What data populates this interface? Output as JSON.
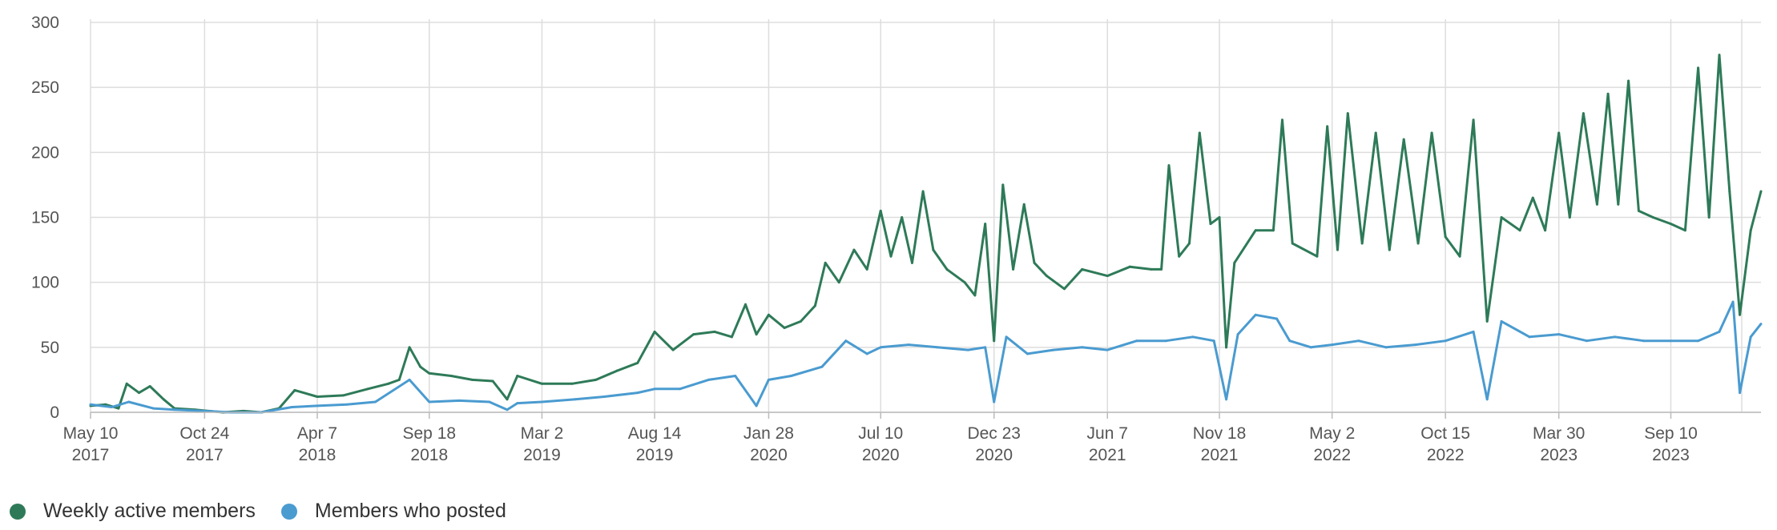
{
  "chart_data": {
    "type": "line",
    "title": "",
    "xlabel": "",
    "ylabel": "",
    "ylim": [
      0,
      300
    ],
    "yticks": [
      0,
      50,
      100,
      150,
      200,
      250,
      300
    ],
    "grid": true,
    "legend_position": "bottom-left",
    "x_range": [
      "2017-05-10",
      "2024-01-20"
    ],
    "x_ticks": [
      {
        "date": "2017-05-10",
        "line1": "May 10",
        "line2": "2017"
      },
      {
        "date": "2017-10-24",
        "line1": "Oct 24",
        "line2": "2017"
      },
      {
        "date": "2018-04-07",
        "line1": "Apr 7",
        "line2": "2018"
      },
      {
        "date": "2018-09-18",
        "line1": "Sep 18",
        "line2": "2018"
      },
      {
        "date": "2019-03-02",
        "line1": "Mar 2",
        "line2": "2019"
      },
      {
        "date": "2019-08-14",
        "line1": "Aug 14",
        "line2": "2019"
      },
      {
        "date": "2020-01-28",
        "line1": "Jan 28",
        "line2": "2020"
      },
      {
        "date": "2020-07-10",
        "line1": "Jul 10",
        "line2": "2020"
      },
      {
        "date": "2020-12-23",
        "line1": "Dec 23",
        "line2": "2020"
      },
      {
        "date": "2021-06-07",
        "line1": "Jun 7",
        "line2": "2021"
      },
      {
        "date": "2021-11-18",
        "line1": "Nov 18",
        "line2": "2021"
      },
      {
        "date": "2022-05-02",
        "line1": "May 2",
        "line2": "2022"
      },
      {
        "date": "2022-10-15",
        "line1": "Oct 15",
        "line2": "2022"
      },
      {
        "date": "2023-03-30",
        "line1": "Mar 30",
        "line2": "2023"
      },
      {
        "date": "2023-09-10",
        "line1": "Sep 10",
        "line2": "2023"
      }
    ],
    "series": [
      {
        "name": "Weekly active members",
        "color": "#2e7a58",
        "points": [
          [
            "2017-05-10",
            5
          ],
          [
            "2017-06-01",
            6
          ],
          [
            "2017-06-20",
            3
          ],
          [
            "2017-07-02",
            22
          ],
          [
            "2017-07-20",
            15
          ],
          [
            "2017-08-05",
            20
          ],
          [
            "2017-08-25",
            10
          ],
          [
            "2017-09-10",
            3
          ],
          [
            "2017-10-10",
            2
          ],
          [
            "2017-11-20",
            0
          ],
          [
            "2017-12-20",
            1
          ],
          [
            "2018-01-15",
            0
          ],
          [
            "2018-02-10",
            3
          ],
          [
            "2018-03-05",
            17
          ],
          [
            "2018-04-07",
            12
          ],
          [
            "2018-05-15",
            13
          ],
          [
            "2018-06-20",
            18
          ],
          [
            "2018-07-20",
            22
          ],
          [
            "2018-08-05",
            25
          ],
          [
            "2018-08-20",
            50
          ],
          [
            "2018-09-05",
            35
          ],
          [
            "2018-09-18",
            30
          ],
          [
            "2018-10-20",
            28
          ],
          [
            "2018-11-20",
            25
          ],
          [
            "2018-12-20",
            24
          ],
          [
            "2019-01-10",
            10
          ],
          [
            "2019-01-25",
            28
          ],
          [
            "2019-03-02",
            22
          ],
          [
            "2019-04-15",
            22
          ],
          [
            "2019-05-20",
            25
          ],
          [
            "2019-06-20",
            32
          ],
          [
            "2019-07-20",
            38
          ],
          [
            "2019-08-14",
            62
          ],
          [
            "2019-09-10",
            48
          ],
          [
            "2019-10-10",
            60
          ],
          [
            "2019-11-10",
            62
          ],
          [
            "2019-12-05",
            58
          ],
          [
            "2019-12-25",
            83
          ],
          [
            "2020-01-10",
            60
          ],
          [
            "2020-01-28",
            75
          ],
          [
            "2020-02-20",
            65
          ],
          [
            "2020-03-15",
            70
          ],
          [
            "2020-04-05",
            82
          ],
          [
            "2020-04-20",
            115
          ],
          [
            "2020-05-10",
            100
          ],
          [
            "2020-06-01",
            125
          ],
          [
            "2020-06-20",
            110
          ],
          [
            "2020-07-10",
            155
          ],
          [
            "2020-07-25",
            120
          ],
          [
            "2020-08-10",
            150
          ],
          [
            "2020-08-25",
            115
          ],
          [
            "2020-09-10",
            170
          ],
          [
            "2020-09-25",
            125
          ],
          [
            "2020-10-15",
            110
          ],
          [
            "2020-11-10",
            100
          ],
          [
            "2020-11-25",
            90
          ],
          [
            "2020-12-10",
            145
          ],
          [
            "2020-12-23",
            55
          ],
          [
            "2021-01-05",
            175
          ],
          [
            "2021-01-20",
            110
          ],
          [
            "2021-02-05",
            160
          ],
          [
            "2021-02-20",
            115
          ],
          [
            "2021-03-10",
            105
          ],
          [
            "2021-04-05",
            95
          ],
          [
            "2021-05-01",
            110
          ],
          [
            "2021-06-07",
            105
          ],
          [
            "2021-07-10",
            112
          ],
          [
            "2021-08-10",
            110
          ],
          [
            "2021-08-25",
            110
          ],
          [
            "2021-09-05",
            190
          ],
          [
            "2021-09-20",
            120
          ],
          [
            "2021-10-05",
            130
          ],
          [
            "2021-10-20",
            215
          ],
          [
            "2021-11-05",
            145
          ],
          [
            "2021-11-18",
            150
          ],
          [
            "2021-11-28",
            50
          ],
          [
            "2021-12-10",
            115
          ],
          [
            "2022-01-10",
            140
          ],
          [
            "2022-02-05",
            140
          ],
          [
            "2022-02-18",
            225
          ],
          [
            "2022-03-05",
            130
          ],
          [
            "2022-04-10",
            120
          ],
          [
            "2022-04-25",
            220
          ],
          [
            "2022-05-10",
            125
          ],
          [
            "2022-05-25",
            230
          ],
          [
            "2022-06-15",
            130
          ],
          [
            "2022-07-05",
            215
          ],
          [
            "2022-07-25",
            125
          ],
          [
            "2022-08-15",
            210
          ],
          [
            "2022-09-05",
            130
          ],
          [
            "2022-09-25",
            215
          ],
          [
            "2022-10-15",
            135
          ],
          [
            "2022-11-05",
            120
          ],
          [
            "2022-11-25",
            225
          ],
          [
            "2022-12-15",
            70
          ],
          [
            "2023-01-05",
            150
          ],
          [
            "2023-02-01",
            140
          ],
          [
            "2023-02-20",
            165
          ],
          [
            "2023-03-10",
            140
          ],
          [
            "2023-03-30",
            215
          ],
          [
            "2023-04-15",
            150
          ],
          [
            "2023-05-05",
            230
          ],
          [
            "2023-05-25",
            160
          ],
          [
            "2023-06-10",
            245
          ],
          [
            "2023-06-25",
            160
          ],
          [
            "2023-07-10",
            255
          ],
          [
            "2023-07-25",
            155
          ],
          [
            "2023-08-15",
            150
          ],
          [
            "2023-09-10",
            145
          ],
          [
            "2023-10-01",
            140
          ],
          [
            "2023-10-20",
            265
          ],
          [
            "2023-11-05",
            150
          ],
          [
            "2023-11-20",
            275
          ],
          [
            "2023-12-05",
            170
          ],
          [
            "2023-12-20",
            75
          ],
          [
            "2024-01-05",
            140
          ],
          [
            "2024-01-20",
            170
          ]
        ]
      },
      {
        "name": "Members who posted",
        "color": "#4a9bd0",
        "points": [
          [
            "2017-05-10",
            6
          ],
          [
            "2017-06-10",
            4
          ],
          [
            "2017-07-05",
            8
          ],
          [
            "2017-08-10",
            3
          ],
          [
            "2017-09-10",
            2
          ],
          [
            "2017-10-24",
            1
          ],
          [
            "2017-12-01",
            0
          ],
          [
            "2018-01-15",
            0
          ],
          [
            "2018-03-01",
            4
          ],
          [
            "2018-04-07",
            5
          ],
          [
            "2018-05-20",
            6
          ],
          [
            "2018-07-01",
            8
          ],
          [
            "2018-08-20",
            25
          ],
          [
            "2018-09-18",
            8
          ],
          [
            "2018-11-01",
            9
          ],
          [
            "2018-12-15",
            8
          ],
          [
            "2019-01-10",
            2
          ],
          [
            "2019-01-25",
            7
          ],
          [
            "2019-03-02",
            8
          ],
          [
            "2019-04-20",
            10
          ],
          [
            "2019-06-01",
            12
          ],
          [
            "2019-07-20",
            15
          ],
          [
            "2019-08-14",
            18
          ],
          [
            "2019-09-20",
            18
          ],
          [
            "2019-11-01",
            25
          ],
          [
            "2019-12-10",
            28
          ],
          [
            "2020-01-10",
            5
          ],
          [
            "2020-01-28",
            25
          ],
          [
            "2020-03-01",
            28
          ],
          [
            "2020-04-15",
            35
          ],
          [
            "2020-05-20",
            55
          ],
          [
            "2020-06-20",
            45
          ],
          [
            "2020-07-10",
            50
          ],
          [
            "2020-08-20",
            52
          ],
          [
            "2020-10-01",
            50
          ],
          [
            "2020-11-15",
            48
          ],
          [
            "2020-12-10",
            50
          ],
          [
            "2020-12-23",
            8
          ],
          [
            "2021-01-10",
            58
          ],
          [
            "2021-02-10",
            45
          ],
          [
            "2021-03-20",
            48
          ],
          [
            "2021-05-01",
            50
          ],
          [
            "2021-06-07",
            48
          ],
          [
            "2021-07-20",
            55
          ],
          [
            "2021-09-01",
            55
          ],
          [
            "2021-10-10",
            58
          ],
          [
            "2021-11-10",
            55
          ],
          [
            "2021-11-28",
            10
          ],
          [
            "2021-12-15",
            60
          ],
          [
            "2022-01-10",
            75
          ],
          [
            "2022-02-10",
            72
          ],
          [
            "2022-03-01",
            55
          ],
          [
            "2022-04-01",
            50
          ],
          [
            "2022-05-02",
            52
          ],
          [
            "2022-06-10",
            55
          ],
          [
            "2022-07-20",
            50
          ],
          [
            "2022-09-01",
            52
          ],
          [
            "2022-10-15",
            55
          ],
          [
            "2022-11-25",
            62
          ],
          [
            "2022-12-15",
            10
          ],
          [
            "2023-01-05",
            70
          ],
          [
            "2023-02-15",
            58
          ],
          [
            "2023-03-30",
            60
          ],
          [
            "2023-05-10",
            55
          ],
          [
            "2023-06-20",
            58
          ],
          [
            "2023-08-01",
            55
          ],
          [
            "2023-09-10",
            55
          ],
          [
            "2023-10-20",
            55
          ],
          [
            "2023-11-20",
            62
          ],
          [
            "2023-12-10",
            85
          ],
          [
            "2023-12-20",
            15
          ],
          [
            "2024-01-05",
            58
          ],
          [
            "2024-01-20",
            68
          ]
        ]
      }
    ]
  }
}
